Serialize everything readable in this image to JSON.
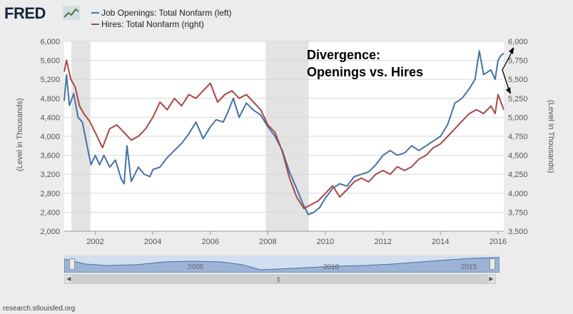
{
  "logo": {
    "text": "FRED"
  },
  "legend": [
    {
      "label": "Job Openings: Total Nonfarm (left)",
      "color": "#4572a7"
    },
    {
      "label": "Hires: Total Nonfarm (right)",
      "color": "#aa4643"
    }
  ],
  "annotation": {
    "line1": "Divergence:",
    "line2": "Openings vs. Hires"
  },
  "source": "research.stlouisfed.org",
  "navigator": {
    "labels": [
      "2005",
      "2010",
      "2015"
    ],
    "scroll_icon": "grip-icon"
  },
  "chart_data": {
    "type": "line",
    "title": "",
    "xlabel": "",
    "ylabel_left": "(Level in Thousands)",
    "ylabel_right": "(Level in Thousands)",
    "x_ticks": [
      "2002",
      "2004",
      "2006",
      "2008",
      "2010",
      "2012",
      "2014",
      "2016"
    ],
    "left_axis": {
      "ylim": [
        2000,
        6000
      ],
      "ticks": [
        "2,000",
        "2,400",
        "2,800",
        "3,200",
        "3,600",
        "4,000",
        "4,400",
        "4,800",
        "5,200",
        "5,600",
        "6,000"
      ]
    },
    "right_axis": {
      "ylim": [
        3500,
        6000
      ],
      "ticks": [
        "3,500",
        "3,750",
        "4,000",
        "4,250",
        "4,500",
        "4,750",
        "5,000",
        "5,250",
        "5,500",
        "5,750",
        "6,000"
      ]
    },
    "recessions": [
      [
        2001.17,
        2001.83
      ],
      [
        2007.92,
        2009.42
      ]
    ],
    "series": [
      {
        "name": "Job Openings: Total Nonfarm (left)",
        "axis": "left",
        "color": "#4572a7",
        "points": [
          [
            2000.92,
            4750
          ],
          [
            2001.0,
            5300
          ],
          [
            2001.1,
            4650
          ],
          [
            2001.25,
            4900
          ],
          [
            2001.4,
            4400
          ],
          [
            2001.55,
            4300
          ],
          [
            2001.7,
            3850
          ],
          [
            2001.85,
            3400
          ],
          [
            2002.0,
            3600
          ],
          [
            2002.15,
            3400
          ],
          [
            2002.3,
            3600
          ],
          [
            2002.5,
            3350
          ],
          [
            2002.7,
            3500
          ],
          [
            2002.9,
            3100
          ],
          [
            2003.0,
            3000
          ],
          [
            2003.1,
            3800
          ],
          [
            2003.25,
            3050
          ],
          [
            2003.5,
            3350
          ],
          [
            2003.7,
            3200
          ],
          [
            2003.9,
            3150
          ],
          [
            2004.0,
            3300
          ],
          [
            2004.25,
            3350
          ],
          [
            2004.5,
            3550
          ],
          [
            2004.75,
            3700
          ],
          [
            2005.0,
            3850
          ],
          [
            2005.25,
            4050
          ],
          [
            2005.5,
            4300
          ],
          [
            2005.75,
            3950
          ],
          [
            2006.0,
            4200
          ],
          [
            2006.2,
            4350
          ],
          [
            2006.45,
            4300
          ],
          [
            2006.6,
            4500
          ],
          [
            2006.8,
            4800
          ],
          [
            2007.0,
            4400
          ],
          [
            2007.25,
            4700
          ],
          [
            2007.5,
            4550
          ],
          [
            2007.75,
            4450
          ],
          [
            2008.0,
            4200
          ],
          [
            2008.25,
            4000
          ],
          [
            2008.5,
            3700
          ],
          [
            2008.75,
            3250
          ],
          [
            2009.0,
            2900
          ],
          [
            2009.2,
            2600
          ],
          [
            2009.4,
            2350
          ],
          [
            2009.6,
            2400
          ],
          [
            2009.8,
            2500
          ],
          [
            2010.0,
            2700
          ],
          [
            2010.25,
            2900
          ],
          [
            2010.5,
            3000
          ],
          [
            2010.75,
            2950
          ],
          [
            2011.0,
            3150
          ],
          [
            2011.25,
            3200
          ],
          [
            2011.5,
            3250
          ],
          [
            2011.75,
            3400
          ],
          [
            2012.0,
            3600
          ],
          [
            2012.25,
            3700
          ],
          [
            2012.5,
            3600
          ],
          [
            2012.75,
            3650
          ],
          [
            2013.0,
            3800
          ],
          [
            2013.25,
            3700
          ],
          [
            2013.5,
            3800
          ],
          [
            2013.75,
            3900
          ],
          [
            2014.0,
            4000
          ],
          [
            2014.25,
            4250
          ],
          [
            2014.5,
            4700
          ],
          [
            2014.75,
            4800
          ],
          [
            2015.0,
            5000
          ],
          [
            2015.2,
            5200
          ],
          [
            2015.35,
            5800
          ],
          [
            2015.5,
            5300
          ],
          [
            2015.75,
            5400
          ],
          [
            2015.9,
            5200
          ],
          [
            2016.0,
            5600
          ],
          [
            2016.1,
            5700
          ],
          [
            2016.2,
            5750
          ]
        ]
      },
      {
        "name": "Hires: Total Nonfarm (right)",
        "axis": "right",
        "color": "#aa4643",
        "points": [
          [
            2000.92,
            5600
          ],
          [
            2001.0,
            5750
          ],
          [
            2001.15,
            5500
          ],
          [
            2001.3,
            5400
          ],
          [
            2001.45,
            5150
          ],
          [
            2001.6,
            5050
          ],
          [
            2001.8,
            4950
          ],
          [
            2002.0,
            4800
          ],
          [
            2002.25,
            4600
          ],
          [
            2002.5,
            4850
          ],
          [
            2002.75,
            4900
          ],
          [
            2003.0,
            4800
          ],
          [
            2003.25,
            4700
          ],
          [
            2003.5,
            4750
          ],
          [
            2003.75,
            4850
          ],
          [
            2004.0,
            5000
          ],
          [
            2004.25,
            5200
          ],
          [
            2004.5,
            5100
          ],
          [
            2004.75,
            5250
          ],
          [
            2005.0,
            5150
          ],
          [
            2005.25,
            5300
          ],
          [
            2005.5,
            5250
          ],
          [
            2005.75,
            5350
          ],
          [
            2006.0,
            5450
          ],
          [
            2006.25,
            5200
          ],
          [
            2006.5,
            5300
          ],
          [
            2006.75,
            5350
          ],
          [
            2007.0,
            5250
          ],
          [
            2007.25,
            5300
          ],
          [
            2007.5,
            5200
          ],
          [
            2007.75,
            5100
          ],
          [
            2008.0,
            4900
          ],
          [
            2008.25,
            4800
          ],
          [
            2008.5,
            4550
          ],
          [
            2008.75,
            4200
          ],
          [
            2009.0,
            3950
          ],
          [
            2009.25,
            3800
          ],
          [
            2009.5,
            3850
          ],
          [
            2009.75,
            3900
          ],
          [
            2010.0,
            4000
          ],
          [
            2010.25,
            4100
          ],
          [
            2010.5,
            3950
          ],
          [
            2010.75,
            4050
          ],
          [
            2011.0,
            4150
          ],
          [
            2011.25,
            4200
          ],
          [
            2011.5,
            4150
          ],
          [
            2011.75,
            4250
          ],
          [
            2012.0,
            4300
          ],
          [
            2012.25,
            4250
          ],
          [
            2012.5,
            4350
          ],
          [
            2012.75,
            4300
          ],
          [
            2013.0,
            4350
          ],
          [
            2013.25,
            4450
          ],
          [
            2013.5,
            4500
          ],
          [
            2013.75,
            4600
          ],
          [
            2014.0,
            4650
          ],
          [
            2014.25,
            4750
          ],
          [
            2014.5,
            4850
          ],
          [
            2014.75,
            4950
          ],
          [
            2015.0,
            5050
          ],
          [
            2015.25,
            5100
          ],
          [
            2015.5,
            5050
          ],
          [
            2015.75,
            5150
          ],
          [
            2015.9,
            5050
          ],
          [
            2016.0,
            5300
          ],
          [
            2016.1,
            5200
          ],
          [
            2016.2,
            5100
          ]
        ]
      }
    ]
  }
}
